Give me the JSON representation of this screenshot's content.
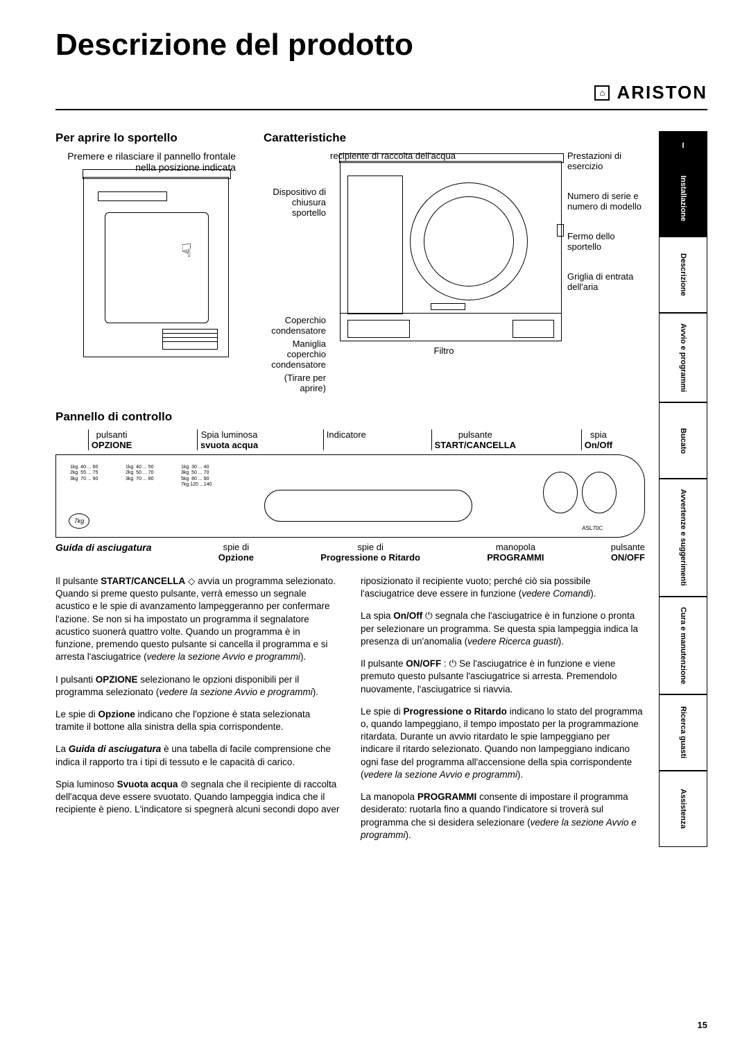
{
  "page": {
    "title": "Descrizione del prodotto",
    "brand": "ARISTON",
    "page_number": "15"
  },
  "sidebar": {
    "tabs": [
      {
        "label": "I",
        "active": true
      },
      {
        "label": "Installazione",
        "active": true
      },
      {
        "label": "Descrizione",
        "active": false
      },
      {
        "label": "Avvio e programmi",
        "active": false
      },
      {
        "label": "Bucato",
        "active": false
      },
      {
        "label": "Avvertenze e suggerimenti",
        "active": false
      },
      {
        "label": "Cura e manutenzione",
        "active": false
      },
      {
        "label": "Ricerca guasti",
        "active": false
      },
      {
        "label": "Assistenza",
        "active": false
      }
    ]
  },
  "door": {
    "heading": "Per aprire lo sportello",
    "text": "Premere e rilasciare il pannello frontale nella posizione indicata"
  },
  "characteristics": {
    "heading": "Caratteristiche",
    "labels": {
      "water_container": "recipiente di raccolta dell'acqua",
      "performance": "Prestazioni di esercizio",
      "door_lock": "Dispositivo di chiusura sportello",
      "serial": "Numero di serie e numero di modello",
      "door_latch": "Fermo dello sportello",
      "air_grid": "Griglia di entrata dell'aria",
      "cond_cover": "Coperchio condensatore",
      "cond_handle": "Maniglia coperchio condensatore",
      "cond_handle_note": "(Tirare per aprire)",
      "filter": "Filtro"
    }
  },
  "panel": {
    "heading": "Pannello di controllo",
    "top": {
      "option_btns": "pulsanti",
      "option_bold": "OPZIONE",
      "empty_light": "Spia luminosa",
      "empty_bold": "svuota acqua",
      "indicator": "Indicatore",
      "start_btn": "pulsante",
      "start_bold": "START/CANCELLA",
      "onoff_light": "spia",
      "onoff_bold": "On/Off"
    },
    "bottom": {
      "guide": "Guida di asciugatura",
      "option_led": "spie di",
      "option_led_bold": "Opzione",
      "progress_led": "spie di",
      "progress_led_bold": "Progressione o Ritardo",
      "knob": "manopola",
      "knob_bold": "PROGRAMMI",
      "onoff_btn": "pulsante",
      "onoff_btn_bold": "ON/OFF"
    },
    "badge": "7kg",
    "model": "ASL70C"
  },
  "body": {
    "left": {
      "p1a": "Il pulsante ",
      "p1b": "START/CANCELLA",
      "p1c": " ◇ avvia un programma selezionato. Quando si preme questo pulsante, verrà emesso un segnale acustico e le spie di avanzamento lampeggeranno per confermare l'azione. Se non si ha impostato un programma il segnalatore  acustico suonerà quattro volte. Quando un programma è in funzione, premendo questo pulsante si cancella il programma e si arresta l'asciugatrice (",
      "p1d": "vedere la sezione Avvio e programmi",
      "p1e": ").",
      "p2a": "I pulsanti ",
      "p2b": "OPZIONE",
      "p2c": " selezionano le opzioni disponibili per il programma selezionato (",
      "p2d": "vedere la sezione Avvio e programmi",
      "p2e": ").",
      "p3a": "Le spie di ",
      "p3b": "Opzione",
      "p3c": " indicano che l'opzione è stata selezionata tramite il bottone alla sinistra della spia corrispondente.",
      "p4a": "La ",
      "p4b": "Guida di asciugatura",
      "p4c": " è una tabella di facile comprensione che indica il rapporto tra i tipi di tessuto e le capacità di carico.",
      "p5a": "Spia luminoso ",
      "p5b": "Svuota acqua",
      "p5c": "  ⊜  segnala che il recipiente di raccolta dell'acqua deve essere svuotato. Quando lampeggia indica che il recipiente è pieno. L'indicatore si spegnerà alcuni secondi dopo aver"
    },
    "right": {
      "p1a": "riposizionato il recipiente vuoto; perché ciò sia possibile l'asciugatrice deve essere in funzione (",
      "p1b": "vedere Comandi",
      "p1c": ").",
      "p2a": "La spia ",
      "p2b": "On/Off",
      "p2c": "  ⏻  segnala che l'asciugatrice è in funzione o pronta per selezionare un programma. Se questa spia lampeggia indica la presenza di un'anomalia (",
      "p2d": "vedere Ricerca guasti",
      "p2e": ").",
      "p3a": "Il pulsante ",
      "p3b": "ON/OFF",
      "p3c": " : ⏻  Se l'asciugatrice è in funzione e viene premuto questo pulsante l'asciugatrice si arresta. Premendolo nuovamente, l'asciugatrice si riavvia.",
      "p4a": "Le spie di ",
      "p4b": "Progressione o Ritardo",
      "p4c": " indicano lo stato del programma o, quando lampeggiano, il tempo impostato per la programmazione ritardata. Durante un avvio ritardato le spie lampeggiano per indicare il ritardo selezionato. Quando non lampeggiano indicano ogni fase del programma all'accensione della spia corrispondente (",
      "p4d": "vedere la sezione Avvio e programmi",
      "p4e": ").",
      "p5a": "La manopola ",
      "p5b": "PROGRAMMI",
      "p5c": " consente di impostare il programma desiderato: ruotarla fino a quando l'indicatore si troverà sul programma che si desidera selezionare (",
      "p5d": "vedere la sezione Avvio e programmi",
      "p5e": ")."
    }
  }
}
